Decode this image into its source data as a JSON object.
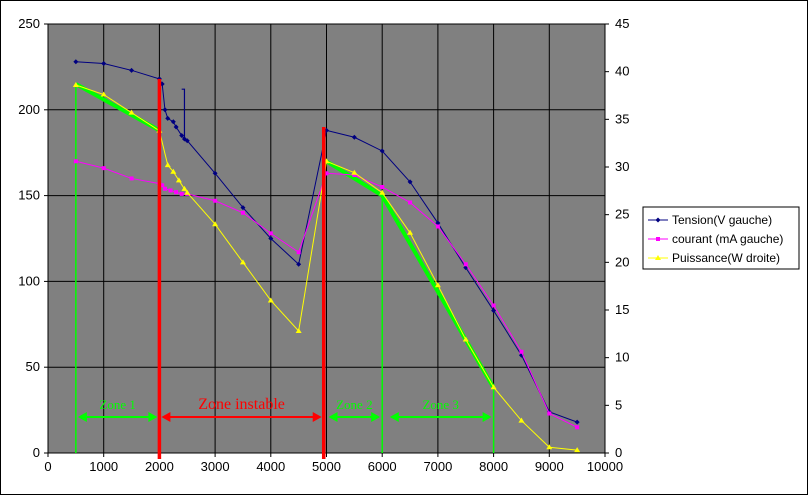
{
  "chart_data": {
    "type": "line",
    "title": "",
    "xlabel": "",
    "ylabel": "",
    "y2label": "",
    "xlim": [
      0,
      10000
    ],
    "ylim": [
      0,
      250
    ],
    "y2lim": [
      0,
      45
    ],
    "x_ticks": [
      "0",
      "1000",
      "2000",
      "3000",
      "4000",
      "5000",
      "6000",
      "7000",
      "8000",
      "9000",
      "10000"
    ],
    "y_ticks": [
      "0",
      "50",
      "100",
      "150",
      "200",
      "250"
    ],
    "y2_ticks": [
      "0",
      "5",
      "10",
      "15",
      "20",
      "25",
      "30",
      "35",
      "40",
      "45"
    ],
    "grid": true,
    "plot_background": "#808080",
    "legend_position": "right",
    "series": [
      {
        "name": "Tension(V gauche)",
        "axis": "left",
        "color": "#000080",
        "marker": "diamond",
        "points": [
          [
            500,
            228
          ],
          [
            1000,
            227
          ],
          [
            1500,
            223
          ],
          [
            2000,
            218
          ],
          [
            2050,
            215
          ],
          [
            2100,
            200
          ],
          [
            2150,
            195
          ],
          [
            2250,
            193
          ],
          [
            2300,
            190
          ],
          [
            2400,
            185
          ],
          [
            2450,
            183
          ],
          [
            2500,
            182
          ],
          [
            3000,
            163
          ],
          [
            3500,
            143
          ],
          [
            4000,
            125
          ],
          [
            4500,
            110
          ],
          [
            5000,
            188
          ],
          [
            5500,
            184
          ],
          [
            6000,
            176
          ],
          [
            6500,
            158
          ],
          [
            7000,
            134
          ],
          [
            7500,
            108
          ],
          [
            8000,
            83
          ],
          [
            8500,
            57
          ],
          [
            9000,
            24
          ],
          [
            9500,
            18
          ]
        ],
        "extra_segment": [
          [
            2400,
            212
          ],
          [
            2450,
            212
          ],
          [
            2450,
            183
          ]
        ]
      },
      {
        "name": "courant (mA gauche)",
        "axis": "left",
        "color": "#ff00ff",
        "marker": "square",
        "points": [
          [
            500,
            170
          ],
          [
            1000,
            166
          ],
          [
            1500,
            160
          ],
          [
            2000,
            157
          ],
          [
            2050,
            156
          ],
          [
            2100,
            154
          ],
          [
            2200,
            153
          ],
          [
            2300,
            152
          ],
          [
            2400,
            151
          ],
          [
            2500,
            151
          ],
          [
            3000,
            147
          ],
          [
            3500,
            140
          ],
          [
            4000,
            128
          ],
          [
            4500,
            117
          ],
          [
            5000,
            163
          ],
          [
            5500,
            162
          ],
          [
            6000,
            155
          ],
          [
            6500,
            146
          ],
          [
            7000,
            132
          ],
          [
            7500,
            110
          ],
          [
            8000,
            86
          ],
          [
            8500,
            59
          ],
          [
            9000,
            23
          ],
          [
            9500,
            15
          ]
        ]
      },
      {
        "name": "Puissance(W droite)",
        "axis": "right",
        "color": "#ffff00",
        "marker": "triangle",
        "points": [
          [
            500,
            38.6
          ],
          [
            1000,
            37.6
          ],
          [
            1500,
            35.7
          ],
          [
            2000,
            33.8
          ],
          [
            2150,
            30.2
          ],
          [
            2250,
            29.5
          ],
          [
            2350,
            28.6
          ],
          [
            2450,
            27.7
          ],
          [
            2500,
            27.3
          ],
          [
            3000,
            24.0
          ],
          [
            3500,
            20.0
          ],
          [
            4000,
            16.0
          ],
          [
            4500,
            12.8
          ],
          [
            5000,
            30.6
          ],
          [
            5500,
            29.4
          ],
          [
            6000,
            27.3
          ],
          [
            6500,
            23.1
          ],
          [
            7000,
            17.6
          ],
          [
            7500,
            11.9
          ],
          [
            8000,
            6.9
          ],
          [
            8500,
            3.4
          ],
          [
            9000,
            0.6
          ],
          [
            9500,
            0.3
          ]
        ]
      }
    ],
    "annotations": {
      "fit_lines": [
        {
          "color": "#00ff00",
          "axis": "left",
          "points": [
            [
              500,
              215
            ],
            [
              2000,
              188
            ]
          ]
        },
        {
          "color": "#00ff00",
          "axis": "left",
          "points": [
            [
              5000,
              170
            ],
            [
              6000,
              150
            ],
            [
              8000,
              38
            ]
          ]
        }
      ],
      "green_verticals": [
        {
          "x": 500,
          "y_top": 215
        },
        {
          "x": 6000,
          "y_top": 152
        },
        {
          "x": 8000,
          "y_top": 40
        }
      ],
      "red_verticals": [
        {
          "x": 2000,
          "y_top": 218
        },
        {
          "x": 4950,
          "y_top": 190
        }
      ],
      "zones": [
        {
          "label": "Zone 1",
          "x_start": 500,
          "x_end": 2000,
          "y": 21,
          "color": "#00ff00"
        },
        {
          "label": "Zone instable",
          "x_start": 2000,
          "x_end": 4950,
          "y": 21,
          "color": "#ff0000"
        },
        {
          "label": "Zone 2",
          "x_start": 5000,
          "x_end": 6000,
          "y": 21,
          "color": "#00ff00"
        },
        {
          "label": "Zone 3",
          "x_start": 6100,
          "x_end": 8000,
          "y": 21,
          "color": "#00ff00"
        }
      ]
    }
  }
}
